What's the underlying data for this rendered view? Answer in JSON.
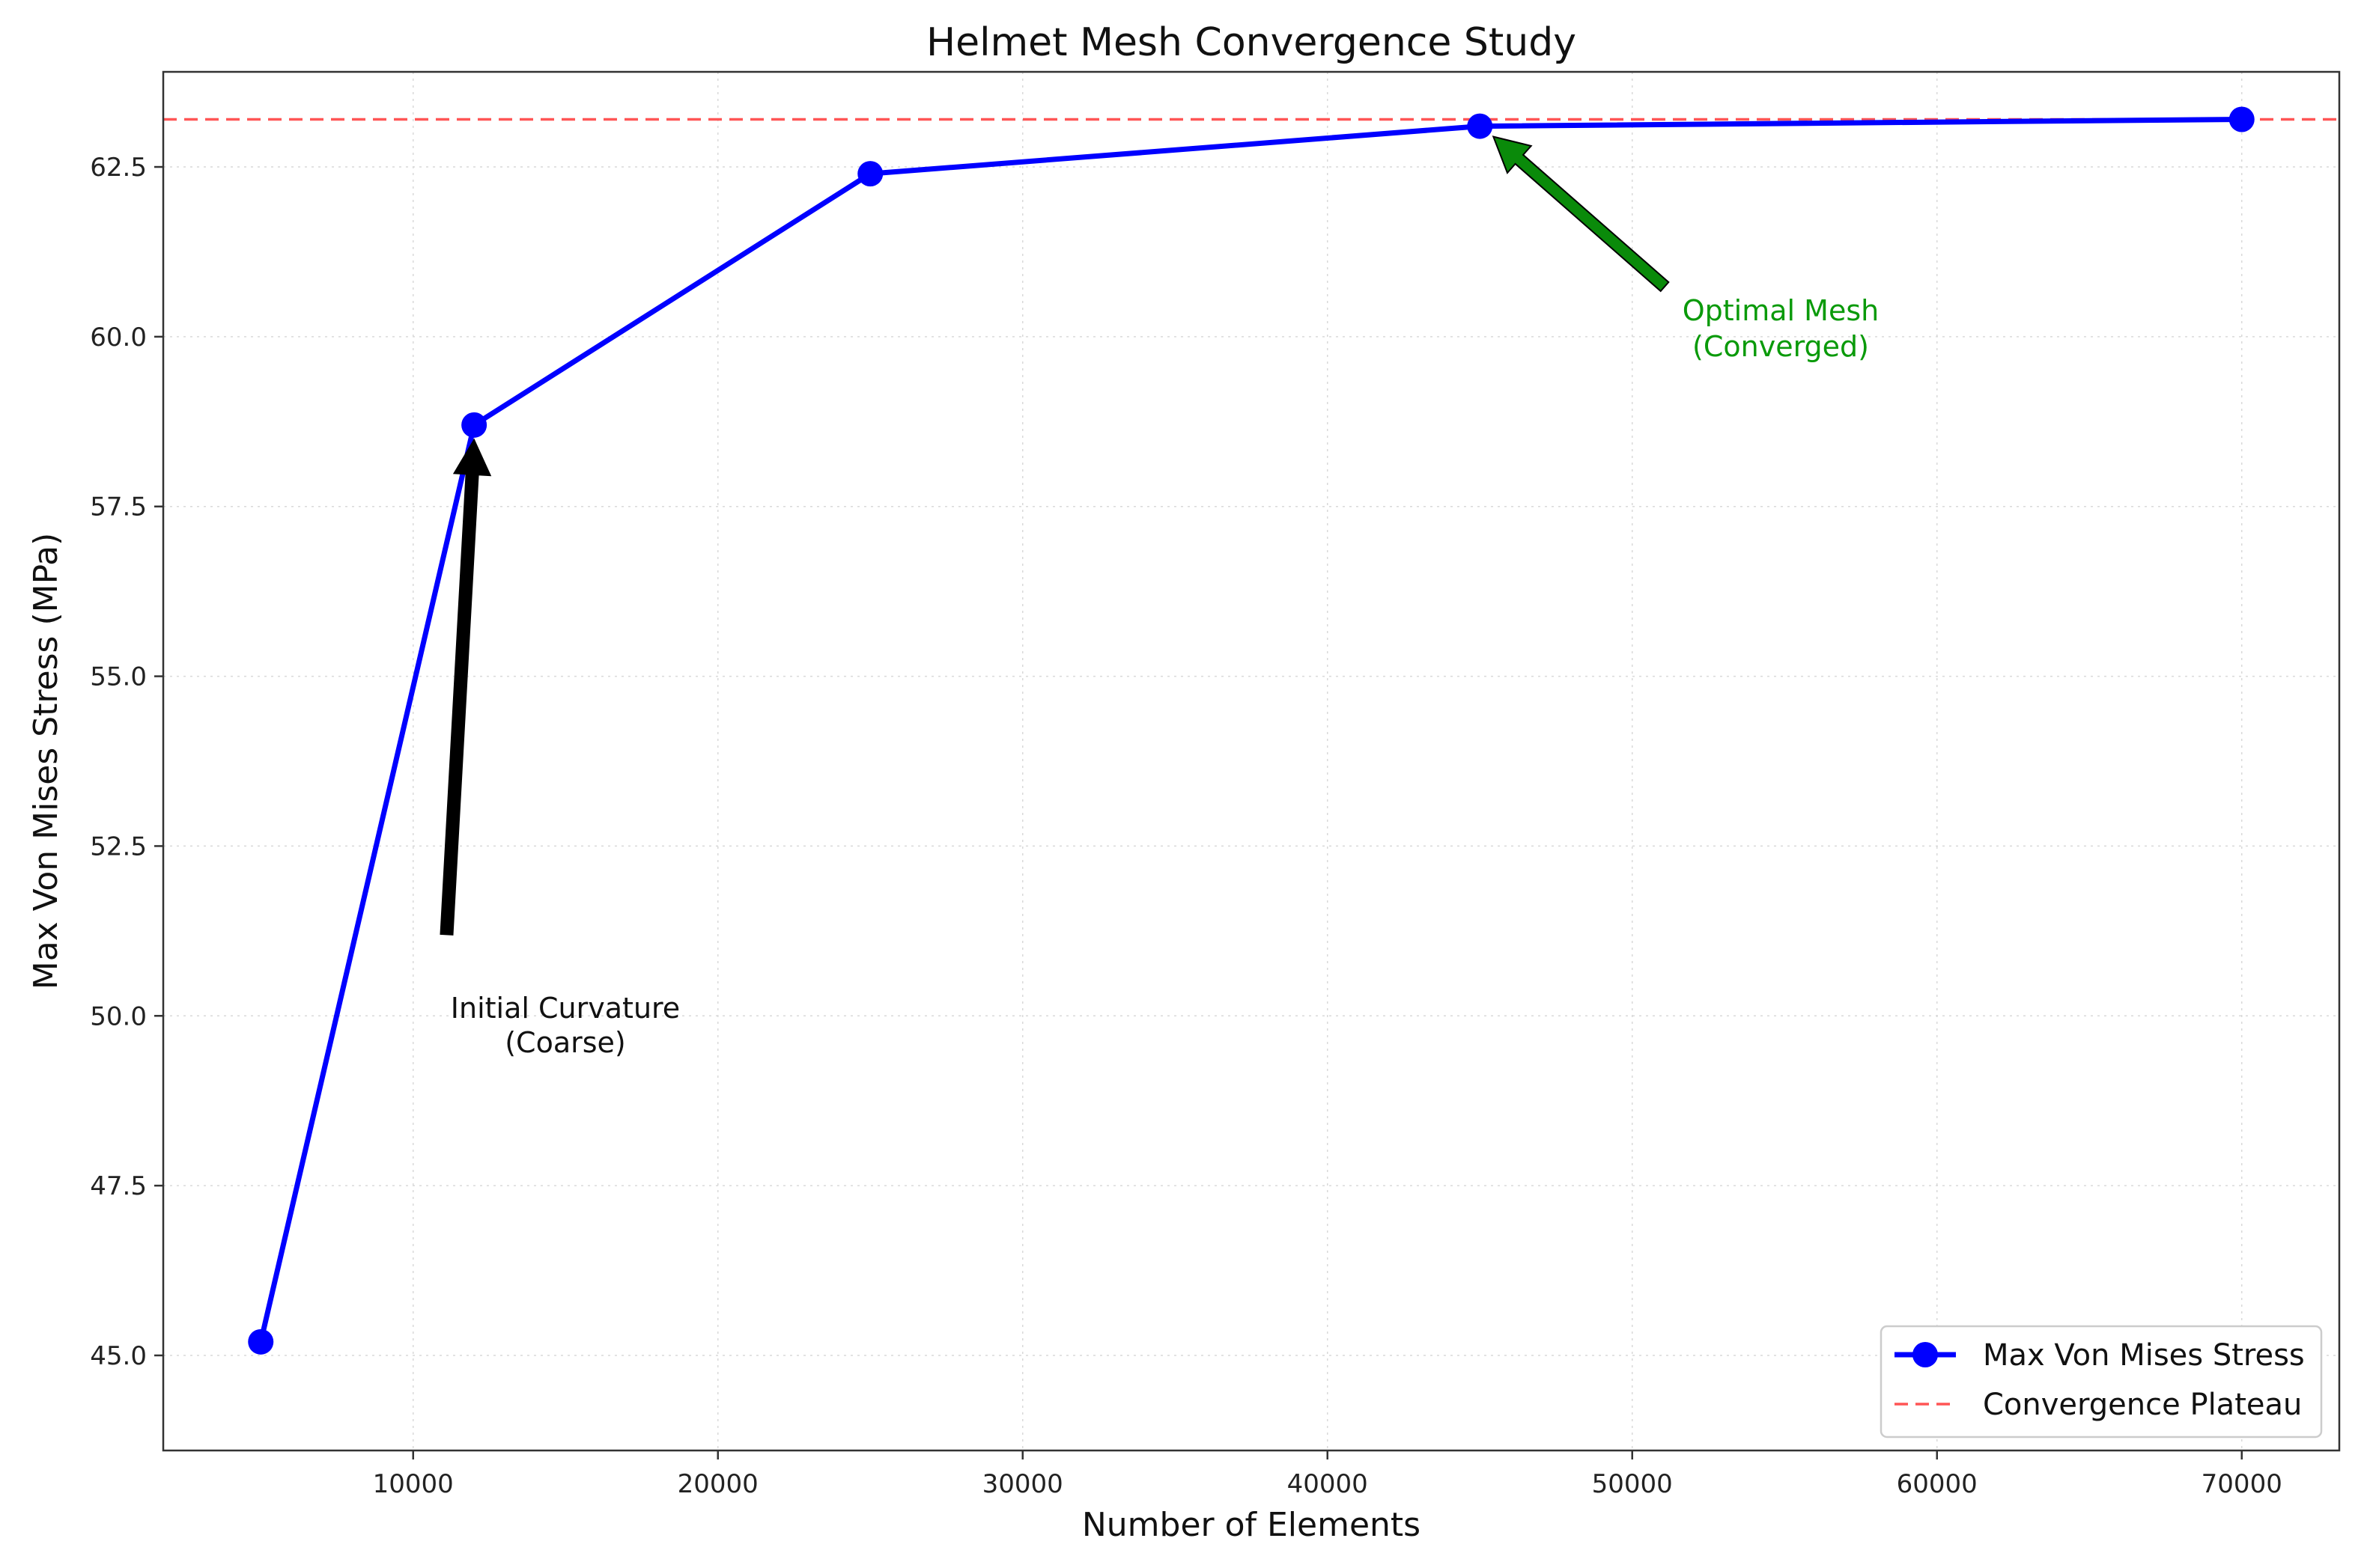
{
  "chart_data": {
    "type": "line",
    "title": "Helmet Mesh Convergence Study",
    "xlabel": "Number of Elements",
    "ylabel": "Max Von Mises Stress (MPa)",
    "xlim": [
      1800,
      73200
    ],
    "ylim": [
      43.6,
      63.9
    ],
    "xticks": [
      10000,
      20000,
      30000,
      40000,
      50000,
      60000,
      70000
    ],
    "yticks": [
      45.0,
      47.5,
      50.0,
      52.5,
      55.0,
      57.5,
      60.0,
      62.5
    ],
    "xtick_labels": [
      "10000",
      "20000",
      "30000",
      "40000",
      "50000",
      "60000",
      "70000"
    ],
    "ytick_labels": [
      "45.0",
      "47.5",
      "50.0",
      "52.5",
      "55.0",
      "57.5",
      "60.0",
      "62.5"
    ],
    "grid": true,
    "legend_position": "bottom-right",
    "series": [
      {
        "name": "Max Von Mises Stress",
        "color": "#0000ff",
        "marker": "circle",
        "x": [
          5000,
          12000,
          25000,
          45000,
          70000
        ],
        "y": [
          45.2,
          58.7,
          62.4,
          63.1,
          63.2
        ]
      }
    ],
    "reference_lines": [
      {
        "name": "Convergence Plateau",
        "orientation": "horizontal",
        "y": 63.2,
        "color": "#ff5555",
        "style": "dashed"
      }
    ],
    "annotations": [
      {
        "text_lines": [
          "Initial Curvature",
          "(Coarse)"
        ],
        "target": [
          12000,
          58.7
        ],
        "text_at": [
          11100,
          51.2
        ],
        "color": "#111111",
        "arrow_color": "#000000"
      },
      {
        "text_lines": [
          "Optimal Mesh",
          "(Converged)"
        ],
        "target": [
          45000,
          63.1
        ],
        "text_at": [
          51300,
          61.0
        ],
        "color": "#0a9a0a",
        "arrow_color": "#0a8a0a"
      }
    ]
  }
}
